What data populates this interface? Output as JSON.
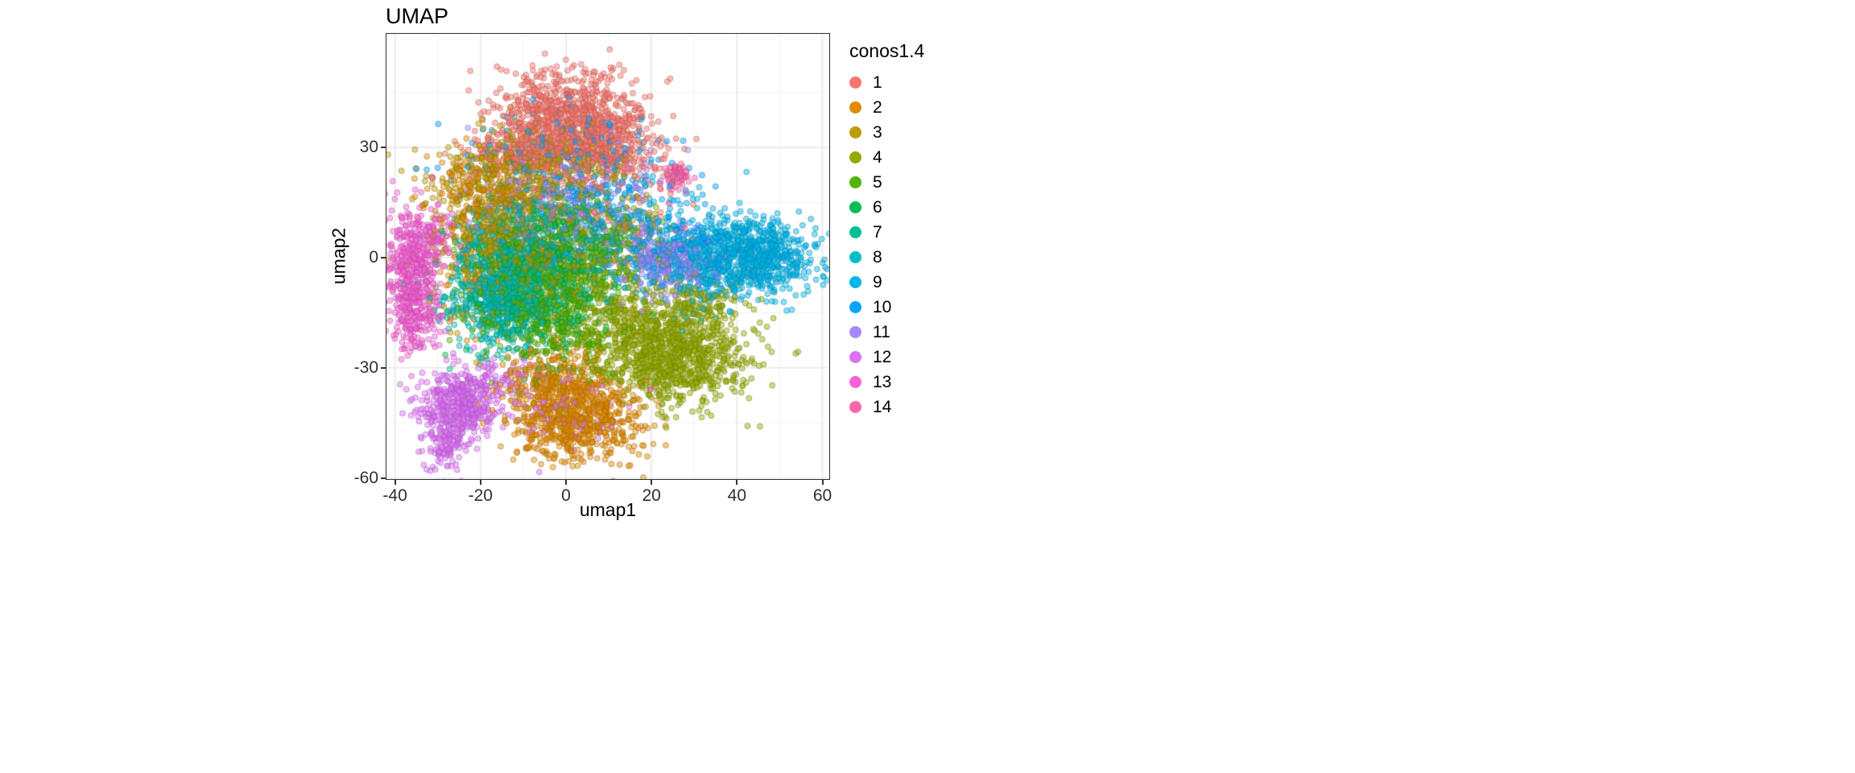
{
  "figure": {
    "background": "#FFFFFF"
  },
  "chart_data": {
    "type": "scatter",
    "title": "UMAP",
    "xlabel": "umap1",
    "ylabel": "umap2",
    "xlim": [
      -42.0,
      61.6
    ],
    "ylim": [
      -60.3,
      61.0
    ],
    "xticks": [
      -40,
      -20,
      0,
      20,
      40,
      60
    ],
    "yticks": [
      -60,
      -30,
      0,
      30
    ],
    "grid": true,
    "grid_major_color": "#e7e7e7",
    "grid_minor_color": "#f3f3f3",
    "panel_background": "#FFFFFF",
    "panel_border_color": "#2f2f2f",
    "point_radius": 3.5,
    "point_alpha": 0.45,
    "legend_title": "conos1.4",
    "legend_position": "right",
    "note": "Dense single-cell UMAP embedding (~11k cells) colored by conos1.4 cluster label; clusters approximated as gaussian blobs with centers/spreads in data units read from the plot.",
    "clusters": [
      {
        "label": "1",
        "color": "#F8766D",
        "blobs": [
          {
            "cx": 0,
            "cy": 38,
            "sx": 9,
            "sy": 6.5,
            "n": 850
          },
          {
            "cx": 10,
            "cy": 29,
            "sx": 6,
            "sy": 4.5,
            "n": 250
          },
          {
            "cx": -9,
            "cy": 28,
            "sx": 7,
            "sy": 4.5,
            "n": 220
          },
          {
            "cx": 2,
            "cy": 14,
            "sx": 13,
            "sy": 8,
            "n": 120
          }
        ]
      },
      {
        "label": "2",
        "color": "#E18A00",
        "blobs": [
          {
            "cx": 2,
            "cy": -43,
            "sx": 7.5,
            "sy": 6,
            "n": 780
          },
          {
            "cx": -4,
            "cy": -32,
            "sx": 6,
            "sy": 4,
            "n": 180
          },
          {
            "cx": -17,
            "cy": 4,
            "sx": 8,
            "sy": 11,
            "n": 200
          },
          {
            "cx": -22,
            "cy": 19,
            "sx": 5,
            "sy": 5,
            "n": 90
          }
        ]
      },
      {
        "label": "3",
        "color": "#BE9C00",
        "blobs": [
          {
            "cx": -18,
            "cy": 14,
            "sx": 7,
            "sy": 9,
            "n": 420
          },
          {
            "cx": -4,
            "cy": 24,
            "sx": 9,
            "sy": 5.5,
            "n": 240
          },
          {
            "cx": -9,
            "cy": -2,
            "sx": 10,
            "sy": 8,
            "n": 180
          }
        ]
      },
      {
        "label": "4",
        "color": "#95AA00",
        "blobs": [
          {
            "cx": 25,
            "cy": -27,
            "sx": 8.5,
            "sy": 6.5,
            "n": 900
          },
          {
            "cx": 13,
            "cy": -17,
            "sx": 6,
            "sy": 6,
            "n": 240
          },
          {
            "cx": 31,
            "cy": -13,
            "sx": 6,
            "sy": 4.5,
            "n": 150
          },
          {
            "cx": 10,
            "cy": 2,
            "sx": 10,
            "sy": 8,
            "n": 110
          }
        ]
      },
      {
        "label": "5",
        "color": "#53B400",
        "blobs": [
          {
            "cx": -7,
            "cy": -6,
            "sx": 8,
            "sy": 9,
            "n": 600
          },
          {
            "cx": -2,
            "cy": -20,
            "sx": 7,
            "sy": 6,
            "n": 240
          },
          {
            "cx": 6,
            "cy": 6,
            "sx": 7,
            "sy": 7,
            "n": 240
          }
        ]
      },
      {
        "label": "6",
        "color": "#00BC56",
        "blobs": [
          {
            "cx": -4,
            "cy": -3,
            "sx": 9,
            "sy": 9,
            "n": 340
          }
        ]
      },
      {
        "label": "7",
        "color": "#00C094",
        "blobs": [
          {
            "cx": -12,
            "cy": -9,
            "sx": 8,
            "sy": 8,
            "n": 380
          }
        ]
      },
      {
        "label": "8",
        "color": "#00BFC4",
        "blobs": [
          {
            "cx": -16,
            "cy": -10,
            "sx": 5.5,
            "sy": 7,
            "n": 430
          },
          {
            "cx": -12,
            "cy": 5,
            "sx": 7,
            "sy": 7,
            "n": 240
          }
        ]
      },
      {
        "label": "9",
        "color": "#00B6EB",
        "blobs": [
          {
            "cx": 44,
            "cy": 0,
            "sx": 6.5,
            "sy": 5,
            "n": 700
          },
          {
            "cx": 33,
            "cy": -2,
            "sx": 5,
            "sy": 6,
            "n": 250
          },
          {
            "cx": 21,
            "cy": 5,
            "sx": 9,
            "sy": 8,
            "n": 150
          }
        ]
      },
      {
        "label": "10",
        "color": "#06A4FF",
        "blobs": [
          {
            "cx": 5,
            "cy": 12,
            "sx": 12,
            "sy": 9,
            "n": 280
          },
          {
            "cx": 25,
            "cy": 2,
            "sx": 6,
            "sy": 5,
            "n": 140
          },
          {
            "cx": -4,
            "cy": 29,
            "sx": 10,
            "sy": 6,
            "n": 140
          }
        ]
      },
      {
        "label": "11",
        "color": "#A58AFF",
        "blobs": [
          {
            "cx": 23,
            "cy": 0,
            "sx": 5,
            "sy": 5,
            "n": 260
          },
          {
            "cx": 1,
            "cy": 17,
            "sx": 12,
            "sy": 8,
            "n": 180
          }
        ]
      },
      {
        "label": "12",
        "color": "#DF70F8",
        "blobs": [
          {
            "cx": -25,
            "cy": -40,
            "sx": 4.5,
            "sy": 4.5,
            "n": 420
          },
          {
            "cx": -28,
            "cy": -50,
            "sx": 2.5,
            "sy": 4,
            "n": 120
          },
          {
            "cx": -18,
            "cy": -33,
            "sx": 5,
            "sy": 3.5,
            "n": 100
          },
          {
            "cx": 0,
            "cy": -41,
            "sx": 8,
            "sy": 6,
            "n": 70
          }
        ]
      },
      {
        "label": "13",
        "color": "#FB61D7",
        "blobs": [
          {
            "cx": -36,
            "cy": -6,
            "sx": 3,
            "sy": 8,
            "n": 400
          },
          {
            "cx": -33,
            "cy": 5,
            "sx": 3.5,
            "sy": 5,
            "n": 150
          },
          {
            "cx": -34,
            "cy": -17,
            "sx": 3,
            "sy": 4,
            "n": 100
          }
        ]
      },
      {
        "label": "14",
        "color": "#FF66A8",
        "blobs": [
          {
            "cx": 26,
            "cy": 22,
            "sx": 1.7,
            "sy": 1.7,
            "n": 70
          },
          {
            "cx": 14,
            "cy": 26,
            "sx": 5,
            "sy": 3,
            "n": 12
          }
        ]
      }
    ]
  }
}
